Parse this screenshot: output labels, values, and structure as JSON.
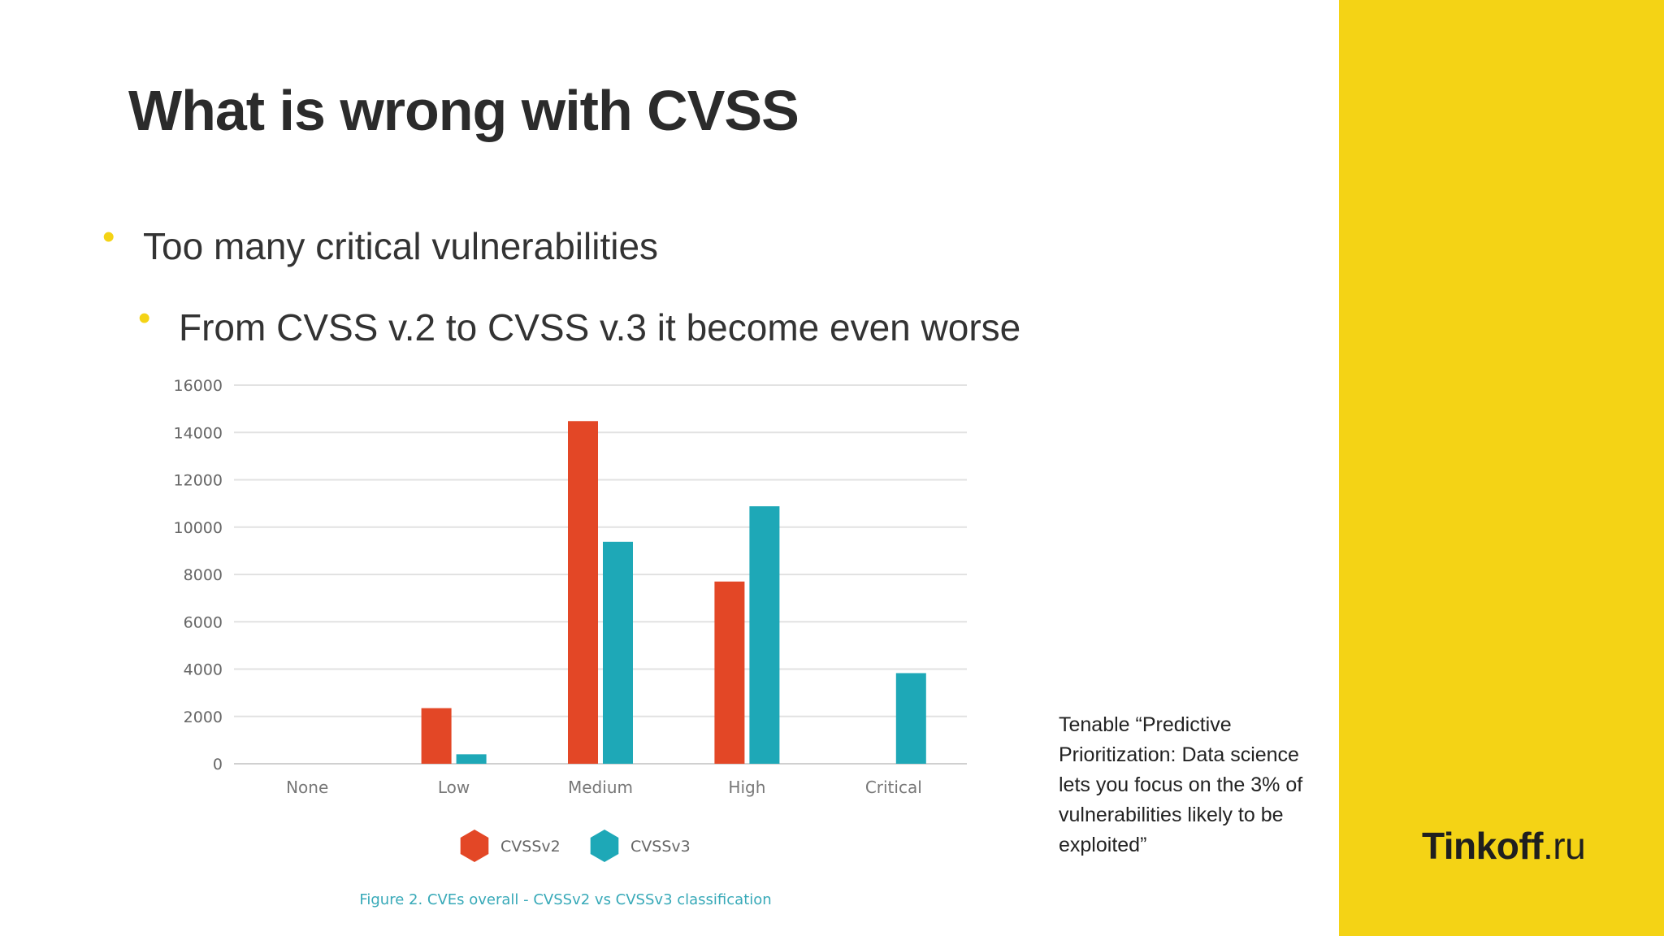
{
  "slide": {
    "title": "What is wrong with CVSS",
    "bullets": [
      "Too many critical vulnerabilities",
      "From CVSS v.2 to CVSS v.3 it become even worse"
    ],
    "note": "Tenable “Predictive Prioritization: Data science lets you focus on the 3% of vulnerabilities likely to be exploited”",
    "logo": {
      "brand": "Tinkoff",
      "suffix": ".ru"
    },
    "colors": {
      "accent": "#f4d315",
      "bullet": "#f4d315",
      "text": "#333333"
    }
  },
  "chart_data": {
    "type": "bar",
    "title": "",
    "caption": "Figure 2. CVEs overall - CVSSv2 vs CVSSv3 classification",
    "xlabel": "",
    "ylabel": "",
    "categories": [
      "None",
      "Low",
      "Medium",
      "High",
      "Critical"
    ],
    "series": [
      {
        "name": "CVSSv2",
        "color": "#e34726",
        "values": [
          0,
          2350,
          14480,
          7700,
          0
        ]
      },
      {
        "name": "CVSSv3",
        "color": "#1ea8b7",
        "values": [
          0,
          400,
          9380,
          10880,
          3830
        ]
      }
    ],
    "ylim": [
      0,
      16000
    ],
    "yticks": [
      0,
      2000,
      4000,
      6000,
      8000,
      10000,
      12000,
      14000,
      16000
    ],
    "grid": true,
    "legend": "bottom-center",
    "legend_marker": "hexagon"
  }
}
